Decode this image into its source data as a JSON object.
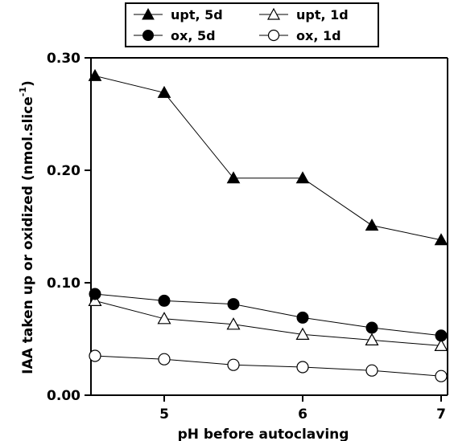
{
  "chart_data": {
    "type": "line",
    "title": "",
    "xlabel": "pH before autoclaving",
    "ylabel": "IAA taken up or oxidized (nmol.slice",
    "ylabel_sup": "-1",
    "ylabel_end": ")",
    "xlim": [
      4.5,
      7
    ],
    "ylim": [
      0,
      0.3
    ],
    "xticks": [
      5,
      6,
      7
    ],
    "xtick_labels": [
      "5",
      "6",
      "7"
    ],
    "yticks": [
      0,
      0.1,
      0.2,
      0.3
    ],
    "ytick_labels": [
      "0.00",
      "0.10",
      "0.20",
      "0.30"
    ],
    "grid": false,
    "legend_position": "top",
    "x": [
      4.5,
      5,
      5.5,
      6,
      6.5,
      7
    ],
    "series": [
      {
        "name": "upt, 5d",
        "marker": "filled-triangle",
        "values": [
          0.284,
          0.269,
          0.193,
          0.193,
          0.151,
          0.138
        ]
      },
      {
        "name": "upt, 1d",
        "marker": "open-triangle",
        "values": [
          0.084,
          0.068,
          0.063,
          0.054,
          0.049,
          0.044
        ]
      },
      {
        "name": "ox, 5d",
        "marker": "filled-circle",
        "values": [
          0.09,
          0.084,
          0.081,
          0.069,
          0.06,
          0.053
        ]
      },
      {
        "name": "ox, 1d",
        "marker": "open-circle",
        "values": [
          0.035,
          0.032,
          0.027,
          0.025,
          0.022,
          0.017
        ]
      }
    ]
  }
}
